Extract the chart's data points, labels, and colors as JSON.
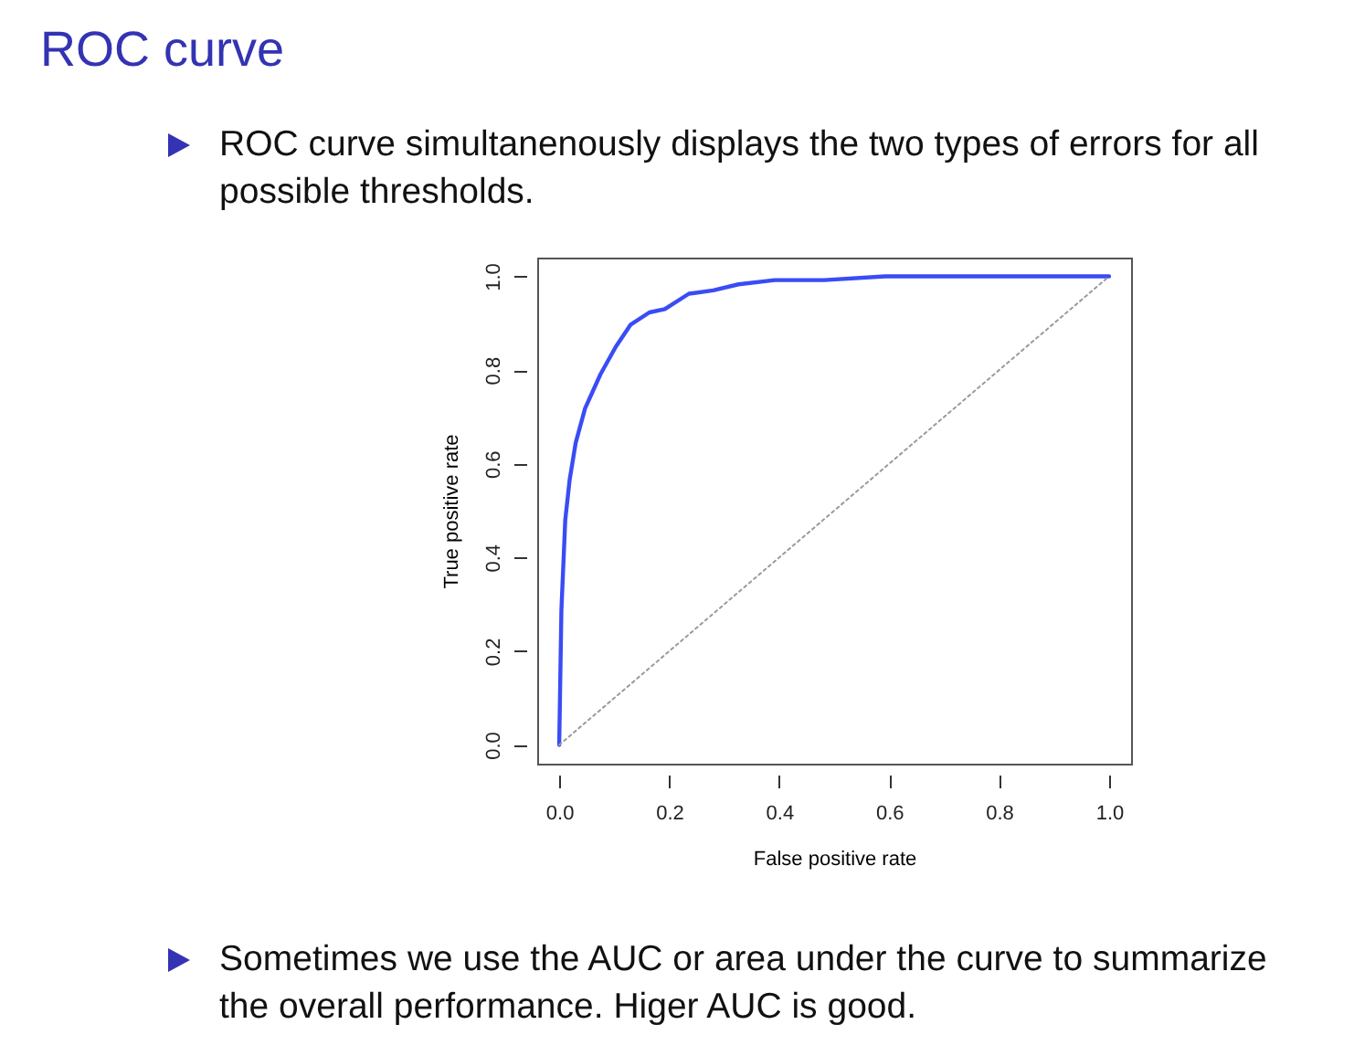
{
  "chart_data": {
    "type": "line",
    "title": "ROC curve",
    "xlabel": "False positive rate",
    "ylabel": "True positive rate",
    "annotations": [
      "ROC curve simultanenously displays the two types of errors for all possible thresholds.",
      "Sometimes we use the AUC or area under the curve to summarize the overall performance. Higer AUC is good."
    ],
    "series": [
      {
        "color": "#3a4cf5",
        "x": [
          0,
          0.004,
          0.011,
          0.019,
          0.03,
          0.047,
          0.075,
          0.103,
          0.13,
          0.164,
          0.192,
          0.236,
          0.28,
          0.326,
          0.392,
          0.482,
          0.593,
          1
        ],
        "values": [
          0,
          0.288,
          0.48,
          0.566,
          0.645,
          0.718,
          0.791,
          0.85,
          0.897,
          0.923,
          0.93,
          0.963,
          0.97,
          0.983,
          0.992,
          0.992,
          1,
          1
        ],
        "line_style": "solid"
      },
      {
        "color": "#9a9a9a",
        "x": [
          0,
          1
        ],
        "values": [
          0,
          1
        ],
        "line_style": "dotted"
      }
    ],
    "xlim": [
      -0.04,
      1.04
    ],
    "ylim": [
      -0.04,
      1.04
    ],
    "xticks": [
      {
        "value": 0,
        "label": "0.0"
      },
      0.2,
      0.4,
      0.6,
      0.8,
      {
        "value": 1,
        "label": "1.0"
      }
    ],
    "yticks": [
      {
        "value": 0,
        "label": "0.0"
      },
      0.2,
      0.4,
      0.6,
      0.8,
      {
        "value": 1,
        "label": "1.0"
      }
    ],
    "grid": false,
    "marker": "none"
  }
}
